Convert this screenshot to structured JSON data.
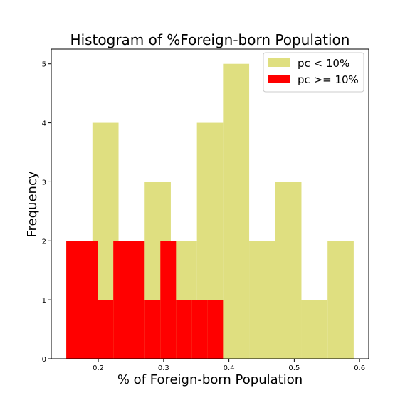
{
  "chart_data": {
    "type": "bar",
    "title": "Histogram of %Foreign-born Population",
    "xlabel": "% of Foreign-born Population",
    "ylabel": "Frequency",
    "xlim": [
      0.128,
      0.614
    ],
    "ylim": [
      0,
      5.25
    ],
    "xticks": [
      0.2,
      0.3,
      0.4,
      0.5,
      0.6
    ],
    "xtick_labels": [
      "0.2",
      "0.3",
      "0.4",
      "0.5",
      "0.6"
    ],
    "yticks": [
      0,
      1,
      2,
      3,
      4,
      5
    ],
    "ytick_labels": [
      "0",
      "1",
      "2",
      "3",
      "4",
      "5"
    ],
    "grid": false,
    "legend_position": "top-right",
    "series": [
      {
        "name": "pc < 10%",
        "color": "#dfdf80",
        "bins": [
          {
            "x0": 0.151,
            "x1": 0.191,
            "count": 2
          },
          {
            "x0": 0.191,
            "x1": 0.231,
            "count": 4
          },
          {
            "x0": 0.231,
            "x1": 0.271,
            "count": 2
          },
          {
            "x0": 0.271,
            "x1": 0.311,
            "count": 3
          },
          {
            "x0": 0.311,
            "x1": 0.351,
            "count": 2
          },
          {
            "x0": 0.351,
            "x1": 0.391,
            "count": 4
          },
          {
            "x0": 0.391,
            "x1": 0.431,
            "count": 5
          },
          {
            "x0": 0.431,
            "x1": 0.471,
            "count": 2
          },
          {
            "x0": 0.471,
            "x1": 0.511,
            "count": 3
          },
          {
            "x0": 0.511,
            "x1": 0.551,
            "count": 1
          },
          {
            "x0": 0.551,
            "x1": 0.591,
            "count": 2
          }
        ]
      },
      {
        "name": "pc >= 10%",
        "color": "#ff0000",
        "bins": [
          {
            "x0": 0.151,
            "x1": 0.199,
            "count": 2
          },
          {
            "x0": 0.199,
            "x1": 0.247,
            "count": 1
          },
          {
            "x0": 0.247,
            "x1": 0.295,
            "count": 2
          },
          {
            "x0": 0.295,
            "x1": 0.343,
            "count": 1
          },
          {
            "x0": 0.343,
            "x1": 0.391,
            "count": 1
          }
        ],
        "finer_bins": [
          {
            "x0": 0.151,
            "x1": 0.199,
            "count": 2
          },
          {
            "x0": 0.199,
            "x1": 0.223,
            "count": 1
          },
          {
            "x0": 0.223,
            "x1": 0.271,
            "count": 2
          },
          {
            "x0": 0.271,
            "x1": 0.295,
            "count": 1
          },
          {
            "x0": 0.295,
            "x1": 0.319,
            "count": 2
          },
          {
            "x0": 0.319,
            "x1": 0.343,
            "count": 1
          },
          {
            "x0": 0.343,
            "x1": 0.367,
            "count": 1
          },
          {
            "x0": 0.367,
            "x1": 0.391,
            "count": 1
          }
        ]
      }
    ]
  }
}
